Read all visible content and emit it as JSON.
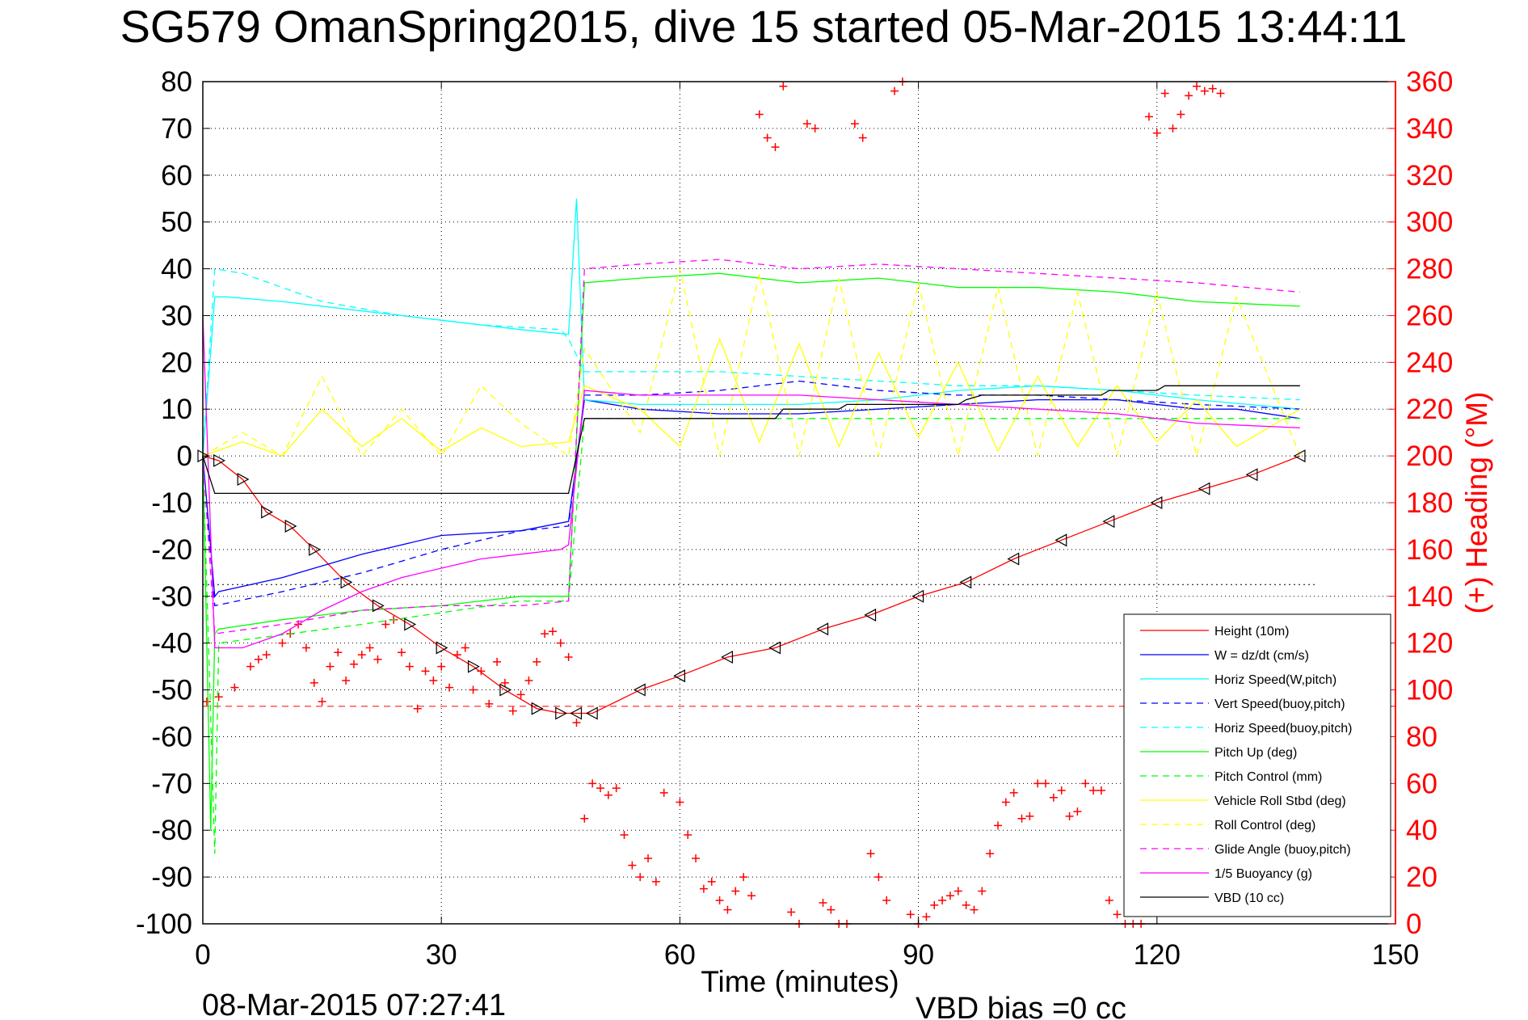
{
  "title": "SG579 OmanSpring2015, dive 15 started 05-Mar-2015 13:44:11",
  "timestamp": "08-Mar-2015 07:27:41",
  "vbd_bias": "VBD bias =0 cc",
  "colors": {
    "height": "#ff0000",
    "w": "#0000ff",
    "horiz": "#00ffff",
    "pitch": "#00ff00",
    "roll": "#ffff00",
    "glide": "#ff00ff",
    "vbd": "#000000",
    "heading": "#ff0000"
  },
  "chart_data": {
    "type": "line",
    "title": "SG579 OmanSpring2015, dive 15 started 05-Mar-2015 13:44:11",
    "xlabel": "Time (minutes)",
    "ylabel_right": "(+) Heading (°M)",
    "xlim": [
      0,
      150
    ],
    "ylim": [
      -100,
      80
    ],
    "ylim_right": [
      0,
      360
    ],
    "xticks": [
      0,
      30,
      60,
      90,
      120,
      150
    ],
    "yticks": [
      80,
      70,
      60,
      50,
      40,
      30,
      20,
      10,
      0,
      -10,
      -20,
      -30,
      -40,
      -50,
      -60,
      -70,
      -80,
      -90,
      -100
    ],
    "yticks_right": [
      360,
      340,
      320,
      300,
      280,
      260,
      240,
      220,
      200,
      180,
      160,
      140,
      120,
      100,
      80,
      60,
      40,
      20,
      0
    ],
    "grid": true,
    "legend_position": "lower-right",
    "series": [
      {
        "name": "Height (10m)",
        "style": "solid",
        "color": "#ff0000",
        "x": [
          0,
          2,
          5,
          8,
          11,
          14,
          18,
          22,
          26,
          30,
          34,
          38,
          42,
          45,
          47,
          49,
          55,
          60,
          66,
          72,
          78,
          84,
          90,
          96,
          102,
          108,
          114,
          120,
          126,
          132,
          138
        ],
        "y": [
          0,
          -1,
          -5,
          -12,
          -15,
          -20,
          -27,
          -32,
          -36,
          -41,
          -45,
          -50,
          -54,
          -55,
          -55,
          -55,
          -50,
          -47,
          -43,
          -41,
          -37,
          -34,
          -30,
          -27,
          -22,
          -18,
          -14,
          -10,
          -7,
          -4,
          0
        ]
      },
      {
        "name": "W = dz/dt (cm/s)",
        "style": "solid",
        "color": "#0000ff",
        "x": [
          0,
          1.5,
          2,
          10,
          20,
          30,
          40,
          46,
          48,
          55,
          65,
          75,
          85,
          95,
          105,
          115,
          125,
          130,
          138
        ],
        "y": [
          0,
          -30,
          -29,
          -26,
          -21,
          -17,
          -16,
          -14,
          12,
          10,
          9,
          9,
          10,
          11,
          12,
          12,
          10,
          10,
          8
        ]
      },
      {
        "name": "Horiz Speed(W,pitch)",
        "style": "solid",
        "color": "#00ffff",
        "x": [
          0,
          1.5,
          3,
          10,
          20,
          30,
          40,
          46,
          47,
          48,
          55,
          65,
          75,
          85,
          95,
          105,
          115,
          125,
          138
        ],
        "y": [
          0,
          34,
          34,
          33,
          31,
          29,
          27,
          26,
          55,
          12,
          11,
          11,
          11,
          12,
          14,
          15,
          14,
          12,
          10
        ]
      },
      {
        "name": "Vert Speed(buoy,pitch)",
        "style": "dashed",
        "color": "#0000ff",
        "x": [
          0,
          1.5,
          10,
          20,
          30,
          40,
          46,
          48,
          55,
          65,
          75,
          85,
          95,
          105,
          115,
          125,
          138
        ],
        "y": [
          0,
          -32,
          -29,
          -25,
          -20,
          -16,
          -15,
          13,
          13,
          14,
          16,
          14,
          13,
          13,
          12,
          11,
          10
        ]
      },
      {
        "name": "Horiz Speed(buoy,pitch)",
        "style": "dashed",
        "color": "#00ffff",
        "x": [
          0,
          1.5,
          5,
          15,
          25,
          35,
          45,
          46,
          48,
          55,
          65,
          75,
          85,
          95,
          105,
          115,
          125,
          138
        ],
        "y": [
          0,
          40,
          39,
          33,
          30,
          28,
          27,
          25,
          18,
          18,
          18,
          17,
          16,
          15,
          15,
          14,
          13,
          12
        ]
      },
      {
        "name": "Pitch Up (deg)",
        "style": "solid",
        "color": "#00ff00",
        "x": [
          0,
          1,
          1.5,
          2,
          10,
          20,
          30,
          40,
          46,
          48,
          55,
          65,
          75,
          85,
          95,
          105,
          115,
          125,
          138
        ],
        "y": [
          0,
          -80,
          -38,
          -37,
          -35,
          -33,
          -32,
          -30,
          -30,
          37,
          38,
          39,
          37,
          38,
          36,
          36,
          35,
          33,
          32
        ]
      },
      {
        "name": "Pitch Control (mm)",
        "style": "dashed",
        "color": "#00ff00",
        "x": [
          0,
          1.5,
          2,
          20,
          40,
          46,
          48,
          65,
          85,
          105,
          125,
          138
        ],
        "y": [
          0,
          -85,
          -40,
          -36,
          -31,
          -31,
          8,
          8,
          8,
          8,
          8,
          8
        ]
      },
      {
        "name": "Vehicle Roll Stbd (deg)",
        "style": "solid",
        "color": "#ffff00",
        "x": [
          0,
          5,
          10,
          15,
          20,
          25,
          30,
          35,
          40,
          46,
          48,
          55,
          60,
          65,
          70,
          75,
          80,
          85,
          90,
          95,
          100,
          105,
          110,
          115,
          120,
          125,
          130,
          138
        ],
        "y": [
          0,
          3,
          0,
          10,
          2,
          8,
          1,
          6,
          2,
          3,
          15,
          10,
          2,
          25,
          3,
          24,
          2,
          22,
          4,
          20,
          1,
          17,
          2,
          15,
          3,
          12,
          2,
          10
        ]
      },
      {
        "name": "Roll Control (deg)",
        "style": "dashed",
        "color": "#ffff00",
        "x": [
          0,
          5,
          10,
          15,
          20,
          25,
          30,
          35,
          40,
          46,
          48,
          55,
          60,
          65,
          70,
          75,
          80,
          85,
          90,
          95,
          100,
          105,
          110,
          115,
          120,
          125,
          130,
          138
        ],
        "y": [
          0,
          5,
          0,
          17,
          0,
          10,
          0,
          15,
          7,
          0,
          23,
          5,
          40,
          0,
          39,
          0,
          38,
          0,
          37,
          0,
          36,
          0,
          35,
          0,
          35,
          0,
          34,
          0
        ]
      },
      {
        "name": "Glide Angle (buoy,pitch)",
        "style": "dashed",
        "color": "#ff00ff",
        "x": [
          0,
          1.5,
          10,
          20,
          30,
          40,
          46,
          48,
          55,
          65,
          75,
          85,
          95,
          105,
          115,
          125,
          138
        ],
        "y": [
          0,
          -38,
          -36,
          -33,
          -32,
          -32,
          -31,
          40,
          41,
          42,
          40,
          41,
          40,
          39,
          38,
          37,
          35
        ]
      },
      {
        "name": "1/5 Buoyancy (g)",
        "style": "solid",
        "color": "#ff00ff",
        "x": [
          0,
          1.5,
          5,
          10,
          15,
          20,
          25,
          30,
          35,
          40,
          45,
          46,
          48,
          55,
          65,
          75,
          85,
          95,
          105,
          115,
          125,
          138
        ],
        "y": [
          30,
          -41,
          -41,
          -38,
          -33,
          -29,
          -26,
          -24,
          -22,
          -21,
          -20,
          -19,
          14,
          13,
          13,
          13,
          12,
          11,
          10,
          9,
          7,
          6
        ]
      },
      {
        "name": "VBD (10 cc)",
        "style": "solid",
        "color": "#000000",
        "x": [
          0,
          1.5,
          10,
          20,
          30,
          40,
          46,
          48,
          55,
          65,
          72,
          73,
          80,
          81,
          88,
          95,
          96,
          98,
          105,
          113,
          114,
          120,
          121,
          128,
          130,
          138
        ],
        "y": [
          0,
          -8,
          -8,
          -8,
          -8,
          -8,
          -8,
          8,
          8,
          8,
          8,
          10,
          10,
          11,
          11,
          11,
          12,
          13,
          13,
          13,
          14,
          14,
          15,
          15,
          15,
          15
        ]
      }
    ],
    "reference_lines": [
      {
        "style": "dashed",
        "color": "#ff0000",
        "y": -53.5,
        "x": [
          0,
          150
        ]
      },
      {
        "style": "dotted",
        "color": "#000000",
        "y": -27.5,
        "x": [
          0,
          140
        ]
      }
    ],
    "heading_series": {
      "axis": "right",
      "marker": "+",
      "color": "#ff0000",
      "x": [
        0.5,
        2,
        4,
        6,
        7,
        8,
        10,
        11,
        12,
        13,
        14,
        15,
        16,
        17,
        18,
        19,
        20,
        21,
        22,
        23,
        24,
        25,
        26,
        27,
        28,
        29,
        30,
        31,
        32,
        33,
        34,
        35,
        36,
        37,
        38,
        39,
        40,
        41,
        42,
        43,
        44,
        45,
        46,
        47,
        48,
        49,
        50,
        51,
        52,
        53,
        54,
        55,
        56,
        57,
        58,
        60,
        61,
        62,
        63,
        64,
        65,
        66,
        67,
        68,
        69,
        70,
        71,
        72,
        73,
        74,
        75,
        76,
        77,
        78,
        79,
        80,
        81,
        82,
        83,
        84,
        85,
        86,
        87,
        88,
        89,
        90,
        91,
        92,
        93,
        94,
        95,
        96,
        97,
        98,
        99,
        100,
        101,
        102,
        103,
        104,
        105,
        106,
        107,
        108,
        109,
        110,
        111,
        112,
        113,
        114,
        115,
        116,
        117,
        118,
        119,
        120,
        121,
        122,
        123,
        124,
        125,
        126,
        127,
        128
      ],
      "y": [
        95,
        97,
        101,
        110,
        113,
        115,
        120,
        124,
        128,
        118,
        103,
        95,
        110,
        116,
        104,
        111,
        115,
        118,
        113,
        128,
        130,
        116,
        110,
        92,
        108,
        104,
        110,
        101,
        115,
        118,
        100,
        108,
        94,
        112,
        103,
        91,
        98,
        104,
        112,
        124,
        125,
        120,
        114,
        86,
        45,
        60,
        58,
        55,
        58,
        38,
        25,
        20,
        28,
        18,
        56,
        52,
        38,
        28,
        15,
        18,
        10,
        6,
        14,
        20,
        12,
        346,
        336,
        332,
        358,
        5,
        0,
        342,
        340,
        9,
        6,
        0,
        0,
        342,
        336,
        30,
        20,
        10,
        356,
        360,
        4,
        0,
        3,
        8,
        10,
        12,
        14,
        8,
        6,
        14,
        30,
        42,
        52,
        56,
        45,
        46,
        60,
        60,
        54,
        57,
        46,
        48,
        60,
        57,
        57,
        10,
        4,
        0,
        0,
        0,
        345,
        338,
        355,
        340,
        346,
        354,
        358,
        356,
        357,
        355
      ]
    }
  }
}
